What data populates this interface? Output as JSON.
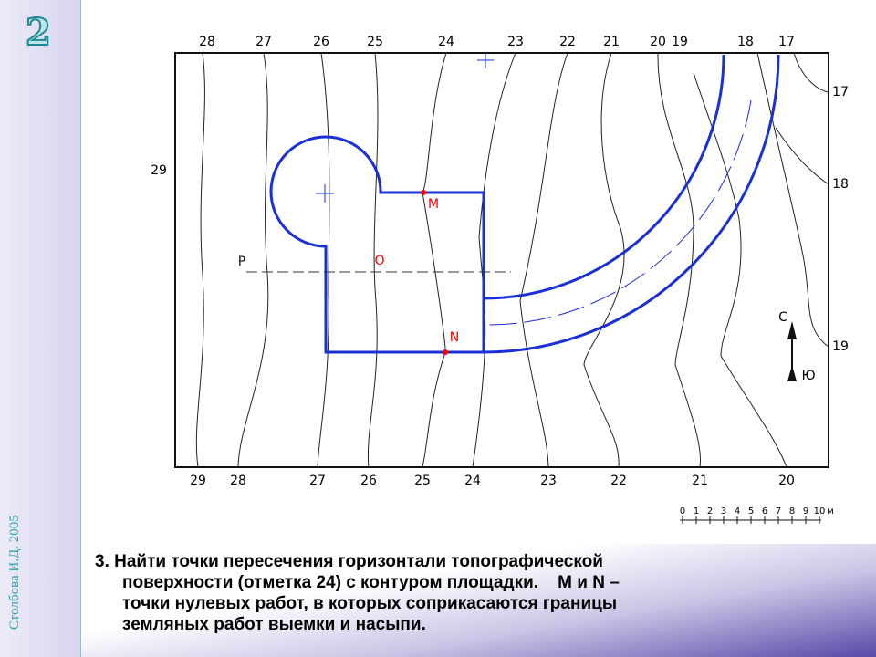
{
  "slide_number": "2",
  "author": "Столбова И.Д. 2005",
  "map": {
    "top_labels": [
      "28",
      "27",
      "26",
      "25",
      "24",
      "23",
      "22",
      "21",
      "20",
      "19",
      "18",
      "17"
    ],
    "right_labels": [
      "17",
      "18",
      "19"
    ],
    "left_labels": [
      "29"
    ],
    "bottom_labels": [
      "29",
      "28",
      "27",
      "26",
      "25",
      "24",
      "23",
      "22",
      "21",
      "20"
    ],
    "points": [
      "M",
      "N",
      "O",
      "P"
    ],
    "compass": {
      "north": "С",
      "south": "Ю"
    },
    "scale": {
      "ticks": [
        "0",
        "1",
        "2",
        "3",
        "4",
        "5",
        "6",
        "7",
        "8",
        "9",
        "10"
      ],
      "unit": "м"
    }
  },
  "caption": {
    "lines": [
      "3. Найти точки пересечения горизонтали топографической",
      "поверхности (отметка 24) с контуром площадки.    M и N –",
      "точки нулевых работ, в которых соприкасаются границы",
      "земляных работ выемки и насыпи."
    ]
  }
}
